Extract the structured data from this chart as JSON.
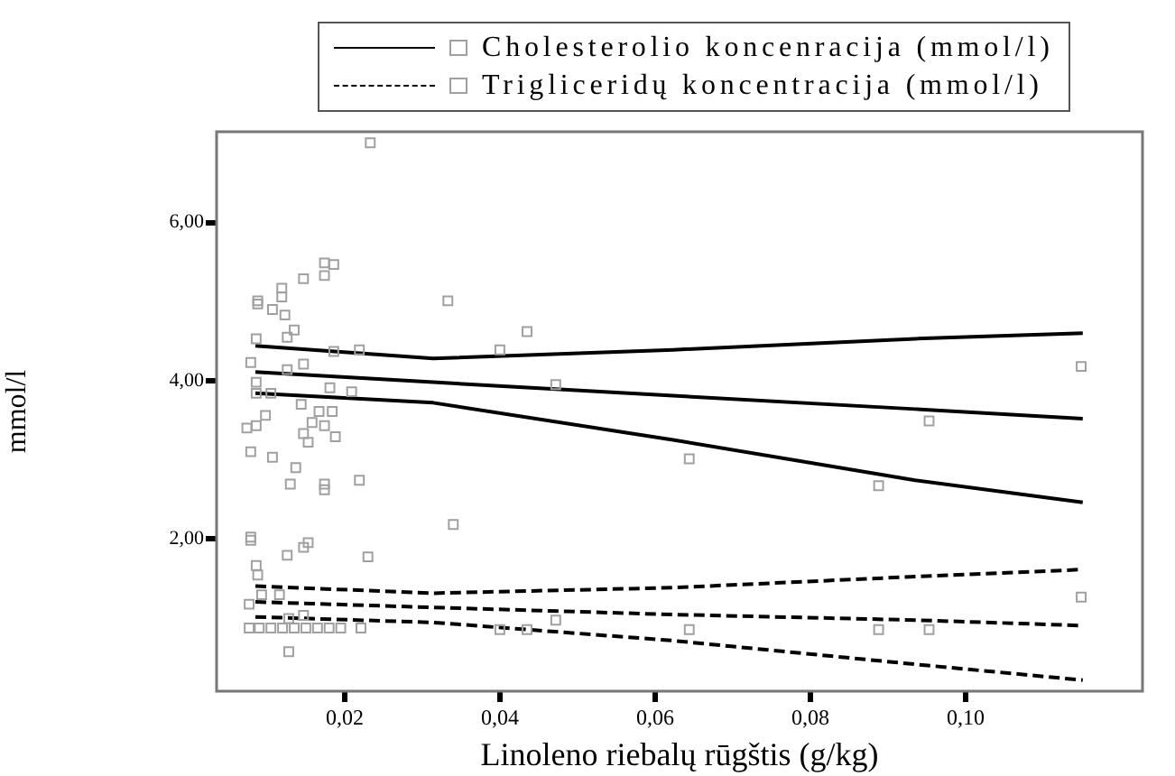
{
  "chart_data": {
    "type": "scatter",
    "xlabel": "Linoleno riebalų rūgštis (g/kg)",
    "ylabel": "mmol/l",
    "legend": "top",
    "grid": false,
    "marker": "square",
    "xlim": [
      0.0035,
      0.1228
    ],
    "xticks": [
      {
        "value": 0.02,
        "label": "0,02"
      },
      {
        "value": 0.04,
        "label": "0,04"
      },
      {
        "value": 0.06,
        "label": "0,06"
      },
      {
        "value": 0.08,
        "label": "0,08"
      },
      {
        "value": 0.1,
        "label": "0,10"
      }
    ],
    "ylim": [
      0.07,
      7.15
    ],
    "yticks": [
      {
        "value": 2,
        "label": "2,00"
      },
      {
        "value": 4,
        "label": "4,00"
      },
      {
        "value": 6,
        "label": "6,00"
      }
    ],
    "series": [
      {
        "name": "Cholesterolio koncenracija (mmol/l)",
        "color": "#a0a0a0",
        "line_style": "solid",
        "x": [
          0.0233,
          0.0174,
          0.0186,
          0.0147,
          0.0174,
          0.0119,
          0.0119,
          0.0088,
          0.0088,
          0.0107,
          0.0123,
          0.0135,
          0.0126,
          0.0086,
          0.0186,
          0.0219,
          0.0079,
          0.0147,
          0.0126,
          0.0086,
          0.0105,
          0.0086,
          0.0181,
          0.0209,
          0.0144,
          0.0098,
          0.0167,
          0.0184,
          0.0158,
          0.0086,
          0.0074,
          0.0174,
          0.0147,
          0.0153,
          0.0188,
          0.0079,
          0.0107,
          0.0137,
          0.013,
          0.0174,
          0.0174,
          0.0219,
          0.0333,
          0.034,
          0.0079,
          0.0435,
          0.04,
          0.0472,
          0.0644,
          0.0888,
          0.0953,
          0.1149
        ],
        "values": [
          7.01,
          5.49,
          5.47,
          5.29,
          5.33,
          5.17,
          5.06,
          5.01,
          4.97,
          4.9,
          4.83,
          4.64,
          4.55,
          4.53,
          4.37,
          4.39,
          4.23,
          4.21,
          4.14,
          3.98,
          3.84,
          3.84,
          3.91,
          3.86,
          3.7,
          3.56,
          3.61,
          3.61,
          3.47,
          3.43,
          3.4,
          3.43,
          3.33,
          3.22,
          3.29,
          3.1,
          3.03,
          2.9,
          2.69,
          2.69,
          2.62,
          2.74,
          5.01,
          2.18,
          2.02,
          4.62,
          4.39,
          3.95,
          3.01,
          2.67,
          3.49,
          4.18
        ]
      },
      {
        "name": "Trigliceridų koncentracija (mmol/l)",
        "color": "#a0a0a0",
        "line_style": "dashed",
        "x": [
          0.0079,
          0.0153,
          0.0147,
          0.0126,
          0.023,
          0.0086,
          0.0088,
          0.0077,
          0.0093,
          0.0116,
          0.0147,
          0.0128,
          0.0128,
          0.0077,
          0.009,
          0.0105,
          0.012,
          0.0135,
          0.015,
          0.0165,
          0.018,
          0.0195,
          0.0221,
          0.0472,
          0.04,
          0.0435,
          0.0644,
          0.0888,
          0.0953,
          0.1149
        ],
        "values": [
          1.98,
          1.95,
          1.89,
          1.79,
          1.77,
          1.66,
          1.54,
          1.17,
          1.29,
          1.29,
          1.03,
          0.99,
          0.57,
          0.87,
          0.87,
          0.87,
          0.87,
          0.87,
          0.87,
          0.87,
          0.87,
          0.87,
          0.87,
          0.97,
          0.85,
          0.85,
          0.85,
          0.85,
          0.85,
          1.26
        ]
      },
      {
        "type": "line",
        "color": "#000000",
        "marker": "none",
        "line_style": "solid",
        "x": [
          0.0085,
          0.0314,
          0.0623,
          0.0935,
          0.1151
        ],
        "values": [
          4.44,
          4.28,
          4.39,
          4.53,
          4.6
        ]
      },
      {
        "type": "line",
        "color": "#000000",
        "marker": "none",
        "line_style": "solid",
        "x": [
          0.0085,
          0.0314,
          0.0623,
          0.0935,
          0.1151
        ],
        "values": [
          4.11,
          3.98,
          3.81,
          3.64,
          3.52
        ]
      },
      {
        "type": "line",
        "color": "#000000",
        "marker": "none",
        "line_style": "solid",
        "x": [
          0.0085,
          0.0314,
          0.0623,
          0.0935,
          0.1151
        ],
        "values": [
          3.84,
          3.72,
          3.25,
          2.74,
          2.46
        ]
      },
      {
        "type": "line",
        "color": "#000000",
        "marker": "none",
        "line_style": "dashed",
        "x": [
          0.0085,
          0.0314,
          0.0623,
          0.0935,
          0.1151
        ],
        "values": [
          1.4,
          1.31,
          1.38,
          1.52,
          1.61
        ]
      },
      {
        "type": "line",
        "color": "#000000",
        "marker": "none",
        "line_style": "dashed",
        "x": [
          0.0085,
          0.0314,
          0.0623,
          0.0935,
          0.1151
        ],
        "values": [
          1.2,
          1.13,
          1.04,
          0.97,
          0.9
        ]
      },
      {
        "type": "line",
        "color": "#000000",
        "marker": "none",
        "line_style": "dashed",
        "x": [
          0.0085,
          0.0314,
          0.0623,
          0.0935,
          0.1151
        ],
        "values": [
          1.01,
          0.94,
          0.71,
          0.41,
          0.21
        ]
      }
    ]
  }
}
